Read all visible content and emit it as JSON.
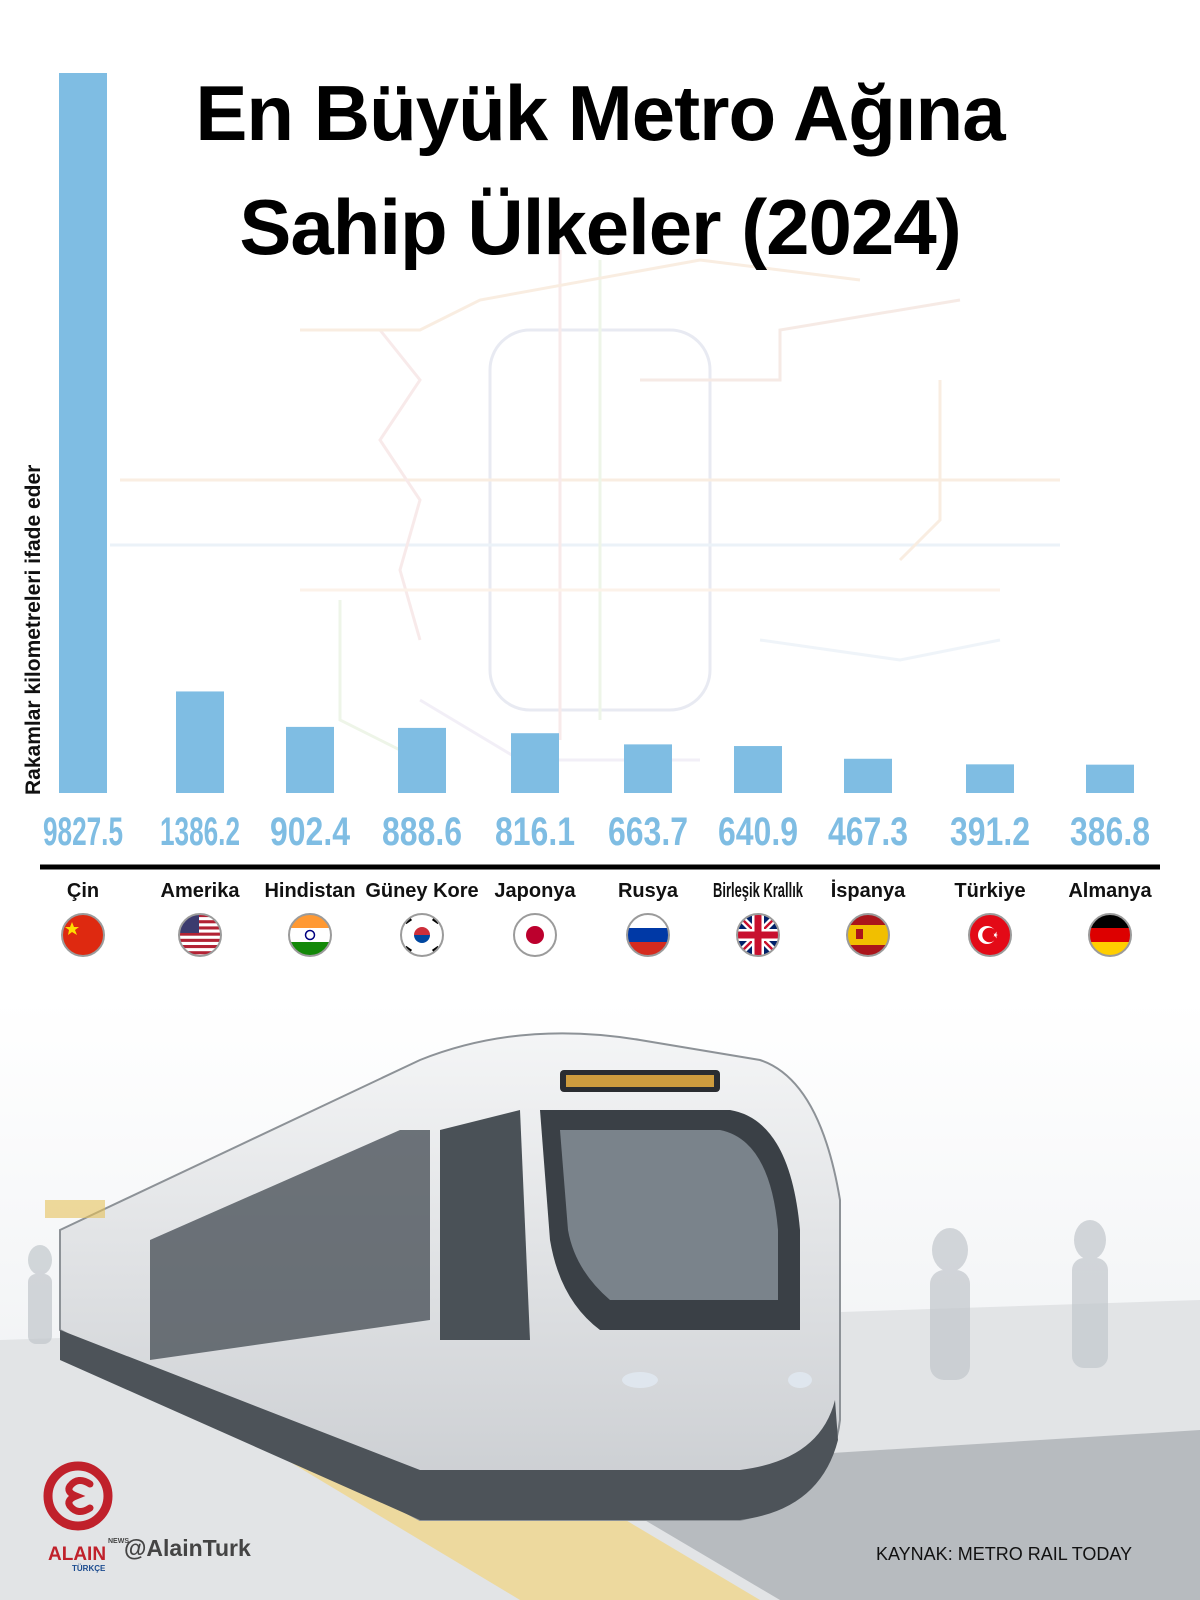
{
  "title_line1": "En Büyük Metro Ağına",
  "title_line2": "Sahip Ülkeler (2024)",
  "source": "KAYNAK: METRO RAIL TODAY",
  "handle": "@AlainTurk",
  "brand": {
    "name": "ALAIN",
    "sub": "TÜRKÇE",
    "news": "NEWS"
  },
  "colors": {
    "bar": "#7fbde3",
    "baseline": "#000000",
    "title": "#000000"
  },
  "chart_data": {
    "type": "bar",
    "title": "En Büyük Metro Ağına Sahip Ülkeler (2024)",
    "xlabel": "",
    "ylabel": "Rakamlar kilometreleri ifade eder",
    "ylim": [
      0,
      9827.5
    ],
    "grid": false,
    "legend": "none",
    "categories": [
      "Çin",
      "Amerika",
      "Hindistan",
      "Güney Kore",
      "Japonya",
      "Rusya",
      "Birleşik Krallık",
      "İspanya",
      "Türkiye",
      "Almanya"
    ],
    "values": [
      9827.5,
      1386.2,
      902.4,
      888.6,
      816.1,
      663.7,
      640.9,
      467.3,
      391.2,
      386.8
    ],
    "value_labels": [
      "9827.5",
      "1386.2",
      "902.4",
      "888.6",
      "816.1",
      "663.7",
      "640.9",
      "467.3",
      "391.2",
      "386.8"
    ],
    "flags": [
      "china-flag-icon",
      "usa-flag-icon",
      "india-flag-icon",
      "south-korea-flag-icon",
      "japan-flag-icon",
      "russia-flag-icon",
      "uk-flag-icon",
      "spain-flag-icon",
      "turkey-flag-icon",
      "germany-flag-icon"
    ]
  }
}
